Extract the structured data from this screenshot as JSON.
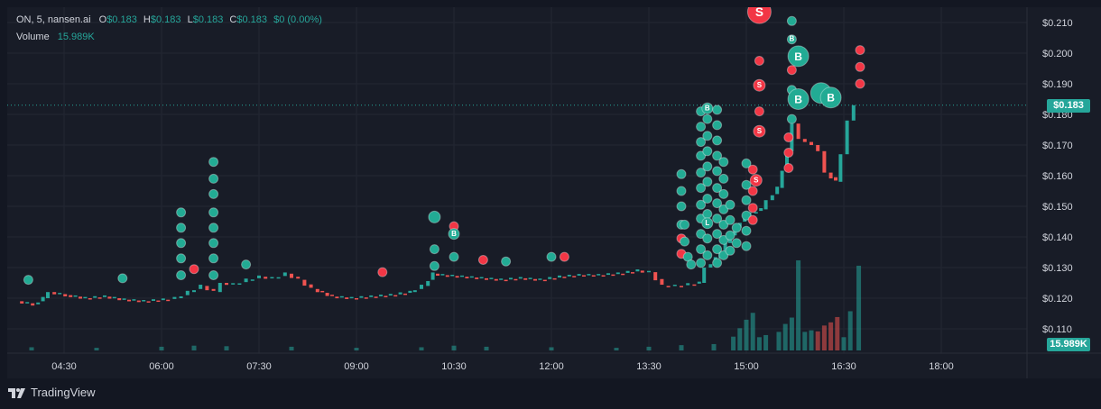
{
  "legend": {
    "symbol": "ON, 5, nansen.ai",
    "o_key": "O",
    "o_val": "$0.183",
    "h_key": "H",
    "h_val": "$0.183",
    "l_key": "L",
    "l_val": "$0.183",
    "c_key": "C",
    "c_val": "$0.183",
    "change": "$0 (0.00%)",
    "volume_label": "Volume",
    "volume_val": "15.989K"
  },
  "current_price_label": "$0.183",
  "current_volume_label": "15.989K",
  "footer": {
    "brand": "TradingView"
  },
  "colors": {
    "up": "#26a69a",
    "down": "#ef5350",
    "bubble_up": "#22ab94",
    "bubble_down": "#f23645",
    "background": "#181c27",
    "grid": "#232733"
  },
  "chart_data": {
    "type": "candlestick",
    "x_ticks": [
      "04:30",
      "06:00",
      "07:30",
      "09:00",
      "10:30",
      "12:00",
      "13:30",
      "15:00",
      "16:30",
      "18:00"
    ],
    "y_ticks": [
      0.11,
      0.12,
      0.13,
      0.14,
      0.15,
      0.16,
      0.17,
      0.18,
      0.19,
      0.2,
      0.21
    ],
    "y_tick_labels": [
      "$0.110",
      "$0.120",
      "$0.130",
      "$0.140",
      "$0.150",
      "$0.160",
      "$0.170",
      "$0.180",
      "$0.190",
      "$0.200",
      "$0.210"
    ],
    "ylim": [
      0.103,
      0.214
    ],
    "xlim_hours": [
      3.75,
      19.25
    ],
    "current_price": 0.183,
    "close_series": [
      [
        3.85,
        0.119
      ],
      [
        4.1,
        0.118
      ],
      [
        4.25,
        0.12
      ],
      [
        4.35,
        0.122
      ],
      [
        4.6,
        0.121
      ],
      [
        4.9,
        0.12
      ],
      [
        5.2,
        0.1205
      ],
      [
        5.5,
        0.1195
      ],
      [
        5.8,
        0.119
      ],
      [
        6.1,
        0.1195
      ],
      [
        6.3,
        0.12
      ],
      [
        6.5,
        0.122
      ],
      [
        6.7,
        0.124
      ],
      [
        6.9,
        0.122
      ],
      [
        7.0,
        0.125
      ],
      [
        7.2,
        0.1245
      ],
      [
        7.4,
        0.126
      ],
      [
        7.6,
        0.127
      ],
      [
        7.8,
        0.1265
      ],
      [
        8.0,
        0.128
      ],
      [
        8.2,
        0.126
      ],
      [
        8.4,
        0.123
      ],
      [
        8.7,
        0.1205
      ],
      [
        9.0,
        0.12
      ],
      [
        9.3,
        0.1205
      ],
      [
        9.6,
        0.121
      ],
      [
        9.9,
        0.122
      ],
      [
        10.1,
        0.124
      ],
      [
        10.25,
        0.128
      ],
      [
        10.4,
        0.1275
      ],
      [
        10.7,
        0.127
      ],
      [
        11.0,
        0.1265
      ],
      [
        11.3,
        0.126
      ],
      [
        11.6,
        0.1265
      ],
      [
        11.9,
        0.126
      ],
      [
        12.2,
        0.127
      ],
      [
        12.5,
        0.1275
      ],
      [
        12.8,
        0.1275
      ],
      [
        13.1,
        0.128
      ],
      [
        13.4,
        0.129
      ],
      [
        13.6,
        0.1285
      ],
      [
        13.8,
        0.124
      ],
      [
        14.0,
        0.124
      ],
      [
        14.2,
        0.1245
      ],
      [
        14.35,
        0.125
      ],
      [
        14.45,
        0.13
      ],
      [
        14.6,
        0.133
      ],
      [
        14.75,
        0.138
      ],
      [
        14.9,
        0.143
      ],
      [
        15.05,
        0.147
      ],
      [
        15.15,
        0.148
      ],
      [
        15.3,
        0.149
      ],
      [
        15.4,
        0.152
      ],
      [
        15.55,
        0.156
      ],
      [
        15.7,
        0.168
      ],
      [
        15.8,
        0.177
      ],
      [
        15.9,
        0.172
      ],
      [
        16.0,
        0.171
      ],
      [
        16.1,
        0.17
      ],
      [
        16.2,
        0.168
      ],
      [
        16.3,
        0.161
      ],
      [
        16.45,
        0.158
      ],
      [
        16.55,
        0.167
      ],
      [
        16.65,
        0.178
      ],
      [
        16.73,
        0.183
      ]
    ],
    "volume_series": [
      [
        4.0,
        600
      ],
      [
        5.0,
        500
      ],
      [
        6.0,
        700
      ],
      [
        6.5,
        900
      ],
      [
        7.0,
        800
      ],
      [
        8.0,
        700
      ],
      [
        9.0,
        500
      ],
      [
        10.0,
        600
      ],
      [
        10.5,
        900
      ],
      [
        11.0,
        700
      ],
      [
        12.0,
        600
      ],
      [
        13.0,
        500
      ],
      [
        13.5,
        700
      ],
      [
        14.0,
        1000
      ],
      [
        14.5,
        1200
      ],
      [
        14.8,
        2600
      ],
      [
        14.9,
        4200
      ],
      [
        15.0,
        5800
      ],
      [
        15.1,
        7100
      ],
      [
        15.2,
        2500
      ],
      [
        15.3,
        2900
      ],
      [
        15.5,
        3500
      ],
      [
        15.6,
        5000
      ],
      [
        15.7,
        6200
      ],
      [
        15.8,
        17000
      ],
      [
        15.9,
        3500
      ],
      [
        16.0,
        3800
      ],
      [
        16.1,
        3600
      ],
      [
        16.2,
        4700
      ],
      [
        16.3,
        5300
      ],
      [
        16.4,
        6300
      ],
      [
        16.5,
        2500
      ],
      [
        16.6,
        7400
      ],
      [
        16.73,
        15989
      ]
    ],
    "trade_bubbles": [
      {
        "t": 3.95,
        "p": 0.126,
        "side": "buy",
        "size": 1
      },
      {
        "t": 5.4,
        "p": 0.1265,
        "side": "buy",
        "size": 1
      },
      {
        "t": 6.3,
        "p": 0.148,
        "side": "buy",
        "size": 1
      },
      {
        "t": 6.3,
        "p": 0.143,
        "side": "buy",
        "size": 1
      },
      {
        "t": 6.3,
        "p": 0.138,
        "side": "buy",
        "size": 1
      },
      {
        "t": 6.3,
        "p": 0.133,
        "side": "buy",
        "size": 1
      },
      {
        "t": 6.3,
        "p": 0.1275,
        "side": "buy",
        "size": 1
      },
      {
        "t": 6.5,
        "p": 0.1295,
        "side": "sell",
        "size": 1
      },
      {
        "t": 6.8,
        "p": 0.1645,
        "side": "buy",
        "size": 1
      },
      {
        "t": 6.8,
        "p": 0.159,
        "side": "buy",
        "size": 1
      },
      {
        "t": 6.8,
        "p": 0.154,
        "side": "buy",
        "size": 1
      },
      {
        "t": 6.8,
        "p": 0.148,
        "side": "buy",
        "size": 1
      },
      {
        "t": 6.8,
        "p": 0.143,
        "side": "buy",
        "size": 1
      },
      {
        "t": 6.8,
        "p": 0.138,
        "side": "buy",
        "size": 1
      },
      {
        "t": 6.8,
        "p": 0.133,
        "side": "buy",
        "size": 1
      },
      {
        "t": 6.8,
        "p": 0.1275,
        "side": "buy",
        "size": 1
      },
      {
        "t": 7.3,
        "p": 0.131,
        "side": "buy",
        "size": 1
      },
      {
        "t": 9.4,
        "p": 0.1285,
        "side": "sell",
        "size": 1
      },
      {
        "t": 10.2,
        "p": 0.1465,
        "side": "buy",
        "size": 1.3
      },
      {
        "t": 10.2,
        "p": 0.136,
        "side": "buy",
        "size": 1
      },
      {
        "t": 10.2,
        "p": 0.1305,
        "side": "buy",
        "size": 1
      },
      {
        "t": 10.5,
        "p": 0.1435,
        "side": "sell",
        "size": 1
      },
      {
        "t": 10.5,
        "p": 0.141,
        "side": "buy",
        "size": 1.2,
        "label": "B"
      },
      {
        "t": 10.5,
        "p": 0.1335,
        "side": "buy",
        "size": 1
      },
      {
        "t": 10.95,
        "p": 0.1325,
        "side": "sell",
        "size": 1
      },
      {
        "t": 11.3,
        "p": 0.132,
        "side": "buy",
        "size": 1
      },
      {
        "t": 12.0,
        "p": 0.1335,
        "side": "buy",
        "size": 1
      },
      {
        "t": 12.2,
        "p": 0.1335,
        "side": "sell",
        "size": 1
      },
      {
        "t": 14.0,
        "p": 0.1605,
        "side": "buy",
        "size": 1
      },
      {
        "t": 14.0,
        "p": 0.155,
        "side": "buy",
        "size": 1
      },
      {
        "t": 14.0,
        "p": 0.15,
        "side": "buy",
        "size": 1
      },
      {
        "t": 14.0,
        "p": 0.144,
        "side": "buy",
        "size": 1
      },
      {
        "t": 14.0,
        "p": 0.1395,
        "side": "sell",
        "size": 1
      },
      {
        "t": 14.0,
        "p": 0.1345,
        "side": "sell",
        "size": 1
      },
      {
        "t": 14.05,
        "p": 0.144,
        "side": "buy",
        "size": 1
      },
      {
        "t": 14.05,
        "p": 0.1385,
        "side": "buy",
        "size": 1
      },
      {
        "t": 14.1,
        "p": 0.1335,
        "side": "buy",
        "size": 1
      },
      {
        "t": 14.15,
        "p": 0.131,
        "side": "buy",
        "size": 1
      },
      {
        "t": 14.3,
        "p": 0.181,
        "side": "buy",
        "size": 1
      },
      {
        "t": 14.3,
        "p": 0.176,
        "side": "buy",
        "size": 1
      },
      {
        "t": 14.3,
        "p": 0.171,
        "side": "buy",
        "size": 1
      },
      {
        "t": 14.3,
        "p": 0.1665,
        "side": "buy",
        "size": 1
      },
      {
        "t": 14.3,
        "p": 0.161,
        "side": "buy",
        "size": 1
      },
      {
        "t": 14.3,
        "p": 0.156,
        "side": "buy",
        "size": 1
      },
      {
        "t": 14.3,
        "p": 0.1505,
        "side": "buy",
        "size": 1
      },
      {
        "t": 14.3,
        "p": 0.146,
        "side": "buy",
        "size": 1
      },
      {
        "t": 14.3,
        "p": 0.141,
        "side": "buy",
        "size": 1
      },
      {
        "t": 14.3,
        "p": 0.136,
        "side": "buy",
        "size": 1
      },
      {
        "t": 14.3,
        "p": 0.1315,
        "side": "buy",
        "size": 1
      },
      {
        "t": 14.4,
        "p": 0.182,
        "side": "buy",
        "size": 1.2,
        "label": "B"
      },
      {
        "t": 14.4,
        "p": 0.1785,
        "side": "buy",
        "size": 1
      },
      {
        "t": 14.4,
        "p": 0.173,
        "side": "buy",
        "size": 1
      },
      {
        "t": 14.4,
        "p": 0.168,
        "side": "buy",
        "size": 1
      },
      {
        "t": 14.4,
        "p": 0.163,
        "side": "buy",
        "size": 1
      },
      {
        "t": 14.4,
        "p": 0.158,
        "side": "buy",
        "size": 1
      },
      {
        "t": 14.4,
        "p": 0.1525,
        "side": "buy",
        "size": 1
      },
      {
        "t": 14.4,
        "p": 0.1475,
        "side": "buy",
        "size": 1
      },
      {
        "t": 14.4,
        "p": 0.1445,
        "side": "buy",
        "size": 1.2,
        "label": "L"
      },
      {
        "t": 14.4,
        "p": 0.1395,
        "side": "buy",
        "size": 1
      },
      {
        "t": 14.4,
        "p": 0.134,
        "side": "buy",
        "size": 1
      },
      {
        "t": 14.55,
        "p": 0.1815,
        "side": "buy",
        "size": 1
      },
      {
        "t": 14.55,
        "p": 0.1765,
        "side": "buy",
        "size": 1
      },
      {
        "t": 14.55,
        "p": 0.1715,
        "side": "buy",
        "size": 1
      },
      {
        "t": 14.55,
        "p": 0.1665,
        "side": "buy",
        "size": 1
      },
      {
        "t": 14.55,
        "p": 0.1615,
        "side": "buy",
        "size": 1
      },
      {
        "t": 14.55,
        "p": 0.156,
        "side": "buy",
        "size": 1
      },
      {
        "t": 14.55,
        "p": 0.151,
        "side": "buy",
        "size": 1
      },
      {
        "t": 14.55,
        "p": 0.146,
        "side": "buy",
        "size": 1
      },
      {
        "t": 14.55,
        "p": 0.141,
        "side": "buy",
        "size": 1
      },
      {
        "t": 14.55,
        "p": 0.136,
        "side": "buy",
        "size": 1
      },
      {
        "t": 14.55,
        "p": 0.1315,
        "side": "buy",
        "size": 1
      },
      {
        "t": 14.65,
        "p": 0.1645,
        "side": "buy",
        "size": 1
      },
      {
        "t": 14.65,
        "p": 0.159,
        "side": "buy",
        "size": 1
      },
      {
        "t": 14.65,
        "p": 0.154,
        "side": "buy",
        "size": 1
      },
      {
        "t": 14.65,
        "p": 0.149,
        "side": "buy",
        "size": 1
      },
      {
        "t": 14.65,
        "p": 0.144,
        "side": "buy",
        "size": 1
      },
      {
        "t": 14.65,
        "p": 0.139,
        "side": "buy",
        "size": 1
      },
      {
        "t": 14.65,
        "p": 0.134,
        "side": "buy",
        "size": 1
      },
      {
        "t": 14.75,
        "p": 0.1505,
        "side": "buy",
        "size": 1
      },
      {
        "t": 14.75,
        "p": 0.1455,
        "side": "buy",
        "size": 1
      },
      {
        "t": 14.75,
        "p": 0.1405,
        "side": "buy",
        "size": 1
      },
      {
        "t": 14.75,
        "p": 0.1355,
        "side": "buy",
        "size": 1
      },
      {
        "t": 14.85,
        "p": 0.143,
        "side": "buy",
        "size": 1
      },
      {
        "t": 14.85,
        "p": 0.138,
        "side": "buy",
        "size": 1
      },
      {
        "t": 15.0,
        "p": 0.164,
        "side": "buy",
        "size": 1
      },
      {
        "t": 15.0,
        "p": 0.157,
        "side": "buy",
        "size": 1
      },
      {
        "t": 15.0,
        "p": 0.152,
        "side": "buy",
        "size": 1
      },
      {
        "t": 15.0,
        "p": 0.147,
        "side": "buy",
        "size": 1
      },
      {
        "t": 15.0,
        "p": 0.142,
        "side": "buy",
        "size": 1
      },
      {
        "t": 15.0,
        "p": 0.137,
        "side": "buy",
        "size": 1
      },
      {
        "t": 15.1,
        "p": 0.162,
        "side": "sell",
        "size": 1
      },
      {
        "t": 15.1,
        "p": 0.155,
        "side": "sell",
        "size": 1
      },
      {
        "t": 15.1,
        "p": 0.1495,
        "side": "sell",
        "size": 1
      },
      {
        "t": 15.1,
        "p": 0.1455,
        "side": "sell",
        "size": 1
      },
      {
        "t": 15.15,
        "p": 0.1585,
        "side": "sell",
        "size": 1.3,
        "label": "S"
      },
      {
        "t": 15.2,
        "p": 0.1975,
        "side": "sell",
        "size": 1
      },
      {
        "t": 15.2,
        "p": 0.1895,
        "side": "sell",
        "size": 1.3,
        "label": "S"
      },
      {
        "t": 15.2,
        "p": 0.181,
        "side": "sell",
        "size": 1
      },
      {
        "t": 15.2,
        "p": 0.1745,
        "side": "sell",
        "size": 1.3,
        "label": "S"
      },
      {
        "t": 15.2,
        "p": 0.2135,
        "side": "sell",
        "size": 2.6,
        "label": "S"
      },
      {
        "t": 15.7,
        "p": 0.2105,
        "side": "buy",
        "size": 1
      },
      {
        "t": 15.7,
        "p": 0.2045,
        "side": "buy",
        "size": 1,
        "label": "B"
      },
      {
        "t": 15.7,
        "p": 0.1945,
        "side": "sell",
        "size": 1
      },
      {
        "t": 15.7,
        "p": 0.188,
        "side": "buy",
        "size": 1
      },
      {
        "t": 15.7,
        "p": 0.1785,
        "side": "buy",
        "size": 1
      },
      {
        "t": 15.8,
        "p": 0.199,
        "side": "buy",
        "size": 2.3,
        "label": "B"
      },
      {
        "t": 15.8,
        "p": 0.185,
        "side": "buy",
        "size": 2.3,
        "label": "B"
      },
      {
        "t": 16.15,
        "p": 0.187,
        "side": "buy",
        "size": 2.3
      },
      {
        "t": 16.3,
        "p": 0.1855,
        "side": "buy",
        "size": 2.3,
        "label": "B"
      },
      {
        "t": 15.65,
        "p": 0.1725,
        "side": "sell",
        "size": 1
      },
      {
        "t": 15.65,
        "p": 0.1675,
        "side": "sell",
        "size": 1
      },
      {
        "t": 15.65,
        "p": 0.1625,
        "side": "sell",
        "size": 1
      },
      {
        "t": 16.75,
        "p": 0.201,
        "side": "sell",
        "size": 1
      },
      {
        "t": 16.75,
        "p": 0.1955,
        "side": "sell",
        "size": 1
      },
      {
        "t": 16.75,
        "p": 0.19,
        "side": "sell",
        "size": 1
      }
    ]
  }
}
